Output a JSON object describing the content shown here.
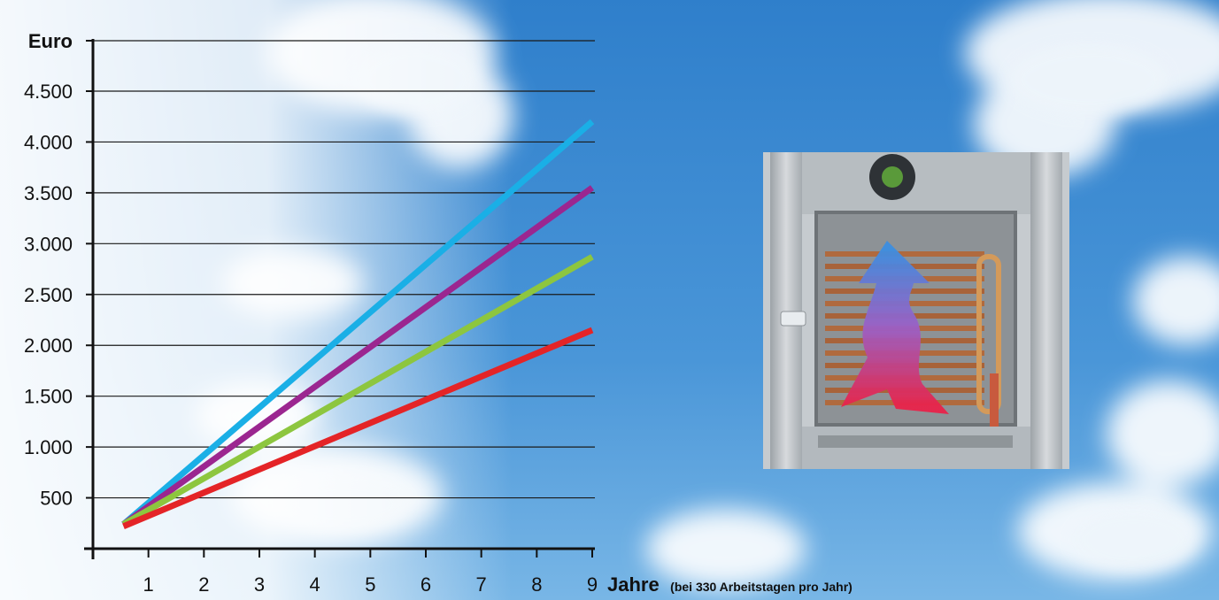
{
  "chart_data": {
    "type": "line",
    "title": "",
    "ylabel": "Euro",
    "xlabel": "Jahre",
    "xlabel_note": "(bei 330 Arbeitstagen pro Jahr)",
    "xlim": [
      0,
      9
    ],
    "ylim": [
      0,
      5000
    ],
    "x_ticks": [
      1,
      2,
      3,
      4,
      5,
      6,
      7,
      8,
      9
    ],
    "y_ticks": [
      500,
      1000,
      1500,
      2000,
      2500,
      3000,
      3500,
      4000,
      4500
    ],
    "y_tick_labels": [
      "500",
      "1.000",
      "1.500",
      "2.000",
      "2.500",
      "3.000",
      "3.500",
      "4.000",
      "4.500"
    ],
    "grid": "horizontal",
    "legend": "none",
    "series": [
      {
        "color": "#1aafe6",
        "points": [
          [
            0.55,
            240
          ],
          [
            9,
            4200
          ]
        ]
      },
      {
        "color": "#9b2690",
        "points": [
          [
            0.55,
            240
          ],
          [
            9,
            3550
          ]
        ]
      },
      {
        "color": "#8dc63f",
        "points": [
          [
            0.55,
            240
          ],
          [
            9,
            2870
          ]
        ]
      },
      {
        "color": "#e42427",
        "points": [
          [
            0.55,
            220
          ],
          [
            9,
            2150
          ]
        ]
      }
    ]
  },
  "illustration": {
    "subject": "heat-exchanger-unit",
    "arrow_colors": [
      "#e8234a",
      "#3d8ee0"
    ]
  }
}
